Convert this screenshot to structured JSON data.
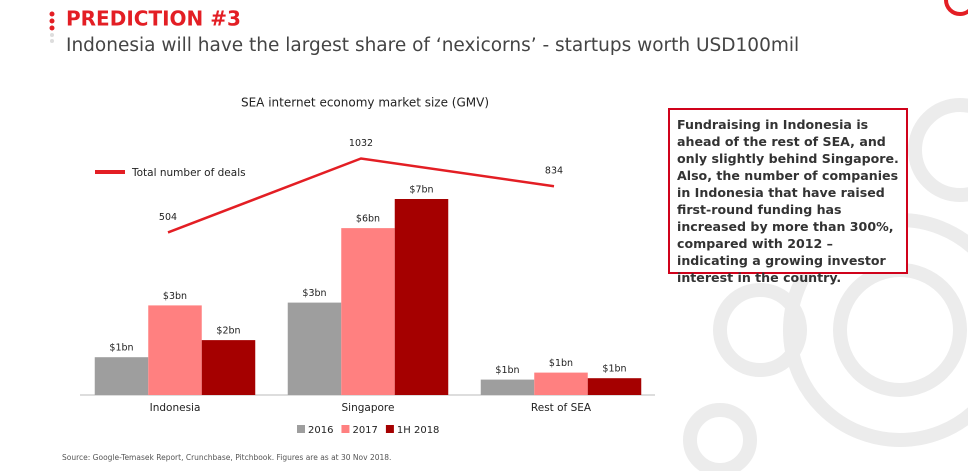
{
  "header": {
    "title": "PREDICTION #3",
    "subtitle": "Indonesia will have the largest share of ‘nexicorns’ - startups worth USD100mil"
  },
  "chart_data": {
    "type": "bar",
    "title": "SEA internet economy market size (GMV)",
    "categories": [
      "Indonesia",
      "Singapore",
      "Rest of SEA"
    ],
    "series": [
      {
        "name": "2016",
        "color": "#9e9e9e",
        "values": [
          1.35,
          3.3,
          0.55
        ],
        "value_labels": [
          "$1bn",
          "$3bn",
          "$1bn"
        ]
      },
      {
        "name": "2017",
        "color": "#ff8080",
        "values": [
          3.2,
          5.96,
          0.8
        ],
        "value_labels": [
          "$3bn",
          "$6bn",
          "$1bn"
        ]
      },
      {
        "name": "1H 2018",
        "color": "#a50000",
        "values": [
          1.96,
          7.0,
          0.6
        ],
        "value_labels": [
          "$2bn",
          "$7bn",
          "$1bn"
        ]
      },
      {
        "name": "Total number of deals",
        "type": "line",
        "color": "#e31e24",
        "values": [
          504,
          1032,
          834
        ]
      }
    ]
  },
  "note": "Fundraising in Indonesia is ahead of the rest of SEA, and only slightly behind Singapore. Also, the number of companies in Indonesia that have raised first-round funding has increased by more than 300%, compared with 2012 – indicating a growing investor interest in the country.",
  "source": "Source: Google-Temasek Report, Crunchbase, Pitchbook. Figures are as at 30 Nov  2018."
}
